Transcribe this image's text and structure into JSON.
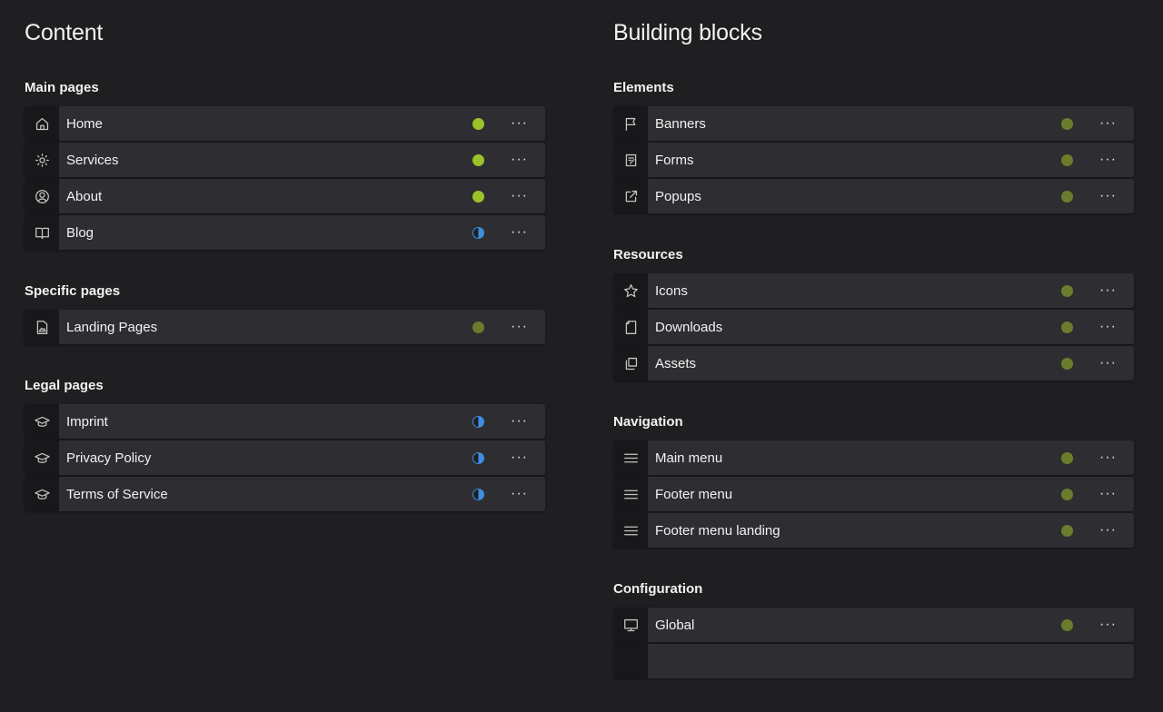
{
  "colors": {
    "background": "#1f1e21",
    "row": "#2e2d31",
    "status_live": "#9bc22b",
    "status_dim": "#6b7d2c",
    "status_partial": "#3d8fe0"
  },
  "columns": [
    {
      "title": "Content",
      "sections": [
        {
          "title": "Main pages",
          "items": [
            {
              "label": "Home",
              "icon": "home-icon",
              "status": "live"
            },
            {
              "label": "Services",
              "icon": "gear-icon",
              "status": "live"
            },
            {
              "label": "About",
              "icon": "user-circle-icon",
              "status": "live"
            },
            {
              "label": "Blog",
              "icon": "book-icon",
              "status": "partial"
            }
          ]
        },
        {
          "title": "Specific pages",
          "items": [
            {
              "label": "Landing Pages",
              "icon": "image-file-icon",
              "status": "dim"
            }
          ]
        },
        {
          "title": "Legal pages",
          "items": [
            {
              "label": "Imprint",
              "icon": "graduation-cap-icon",
              "status": "partial"
            },
            {
              "label": "Privacy Policy",
              "icon": "graduation-cap-icon",
              "status": "partial"
            },
            {
              "label": "Terms of Service",
              "icon": "graduation-cap-icon",
              "status": "partial"
            }
          ]
        }
      ]
    },
    {
      "title": "Building blocks",
      "sections": [
        {
          "title": "Elements",
          "items": [
            {
              "label": "Banners",
              "icon": "flag-icon",
              "status": "dim"
            },
            {
              "label": "Forms",
              "icon": "edit-form-icon",
              "status": "dim"
            },
            {
              "label": "Popups",
              "icon": "external-link-icon",
              "status": "dim"
            }
          ]
        },
        {
          "title": "Resources",
          "items": [
            {
              "label": "Icons",
              "icon": "star-icon",
              "status": "dim"
            },
            {
              "label": "Downloads",
              "icon": "document-icon",
              "status": "dim"
            },
            {
              "label": "Assets",
              "icon": "copy-icon",
              "status": "dim"
            }
          ]
        },
        {
          "title": "Navigation",
          "items": [
            {
              "label": "Main menu",
              "icon": "menu-icon",
              "status": "dim"
            },
            {
              "label": "Footer menu",
              "icon": "menu-icon",
              "status": "dim"
            },
            {
              "label": "Footer menu landing",
              "icon": "menu-icon",
              "status": "dim"
            }
          ]
        },
        {
          "title": "Configuration",
          "items": [
            {
              "label": "Global",
              "icon": "monitor-icon",
              "status": "dim"
            },
            {
              "label": "",
              "icon": "",
              "status": ""
            }
          ]
        }
      ]
    }
  ],
  "more_label": "···"
}
